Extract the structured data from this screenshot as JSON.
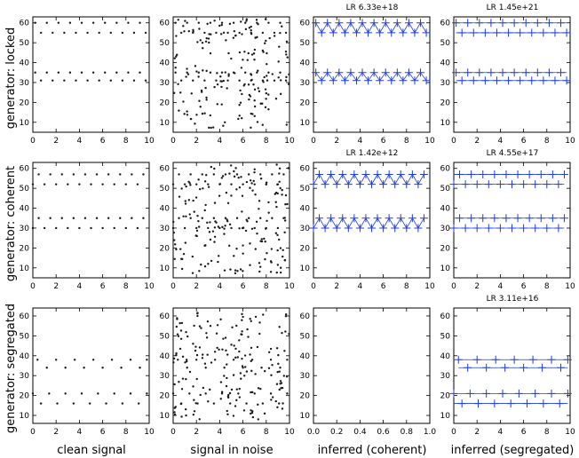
{
  "row_labels": [
    "generator: locked",
    "generator: coherent",
    "generator: segregated"
  ],
  "col_labels": [
    "clean signal",
    "signal in noise",
    "inferred (coherent)",
    "inferred (segregated)"
  ],
  "lr_labels": [
    [
      "",
      "",
      "LR 6.33e+18",
      "LR 1.45e+21"
    ],
    [
      "",
      "",
      "LR 1.42e+12",
      "LR 4.55e+17"
    ],
    [
      "",
      "",
      "",
      "LR 3.11e+16"
    ]
  ],
  "colors": {
    "dots": "#1a1a1a",
    "markers": "#1f3de0",
    "lines": "#1f3de0",
    "axes": "#000000"
  },
  "chart_data": {
    "type": "scatter",
    "layout": "3x4 grid",
    "x_ticks": [
      0,
      2,
      4,
      6,
      8,
      10
    ],
    "x_ticks_unit": [
      0.0,
      0.2,
      0.4,
      0.6,
      0.8,
      1.0
    ],
    "y_ticks": {
      "row0": [
        10,
        20,
        30,
        40,
        50,
        60
      ],
      "row1": [
        10,
        20,
        30,
        40,
        50,
        60
      ],
      "row2": [
        10,
        20,
        30,
        40,
        50,
        60
      ]
    },
    "xlim": [
      0,
      10
    ],
    "ylim": [
      [
        5,
        63
      ],
      [
        5,
        63
      ],
      [
        6,
        64
      ]
    ],
    "clean_levels": {
      "locked": {
        "high": [
          60,
          55
        ],
        "low": [
          35,
          31
        ]
      },
      "coherent": {
        "high": [
          57,
          52
        ],
        "low": [
          35,
          30
        ]
      },
      "segregated": {
        "high": [
          38,
          34
        ],
        "low": [
          21,
          16
        ]
      }
    },
    "clean_points": {
      "locked": {
        "x": [
          0.2,
          0.7,
          1.2,
          1.7,
          2.2,
          2.7,
          3.2,
          3.7,
          4.2,
          4.7,
          5.2,
          5.7,
          6.2,
          6.7,
          7.2,
          7.7,
          8.2,
          8.7,
          9.2,
          9.7
        ],
        "series": [
          {
            "name": "",
            "values": [
              60,
              55,
              60,
              55,
              60,
              55,
              60,
              55,
              60,
              55,
              60,
              55,
              60,
              55,
              60,
              55,
              60,
              55,
              60,
              55
            ]
          },
          {
            "name": "",
            "values": [
              35,
              31,
              35,
              31,
              35,
              31,
              35,
              31,
              35,
              31,
              35,
              31,
              35,
              31,
              35,
              31,
              35,
              31,
              35,
              31
            ]
          }
        ]
      },
      "coherent": {
        "x": [
          0.0,
          0.5,
          1.0,
          1.5,
          2.0,
          2.5,
          3.0,
          3.5,
          4.0,
          4.5,
          5.0,
          5.5,
          6.0,
          6.5,
          7.0,
          7.5,
          8.0,
          8.5,
          9.0,
          9.5
        ],
        "series": [
          {
            "name": "",
            "values": [
              52,
              57,
              52,
              57,
              52,
              57,
              52,
              57,
              52,
              57,
              52,
              57,
              52,
              57,
              52,
              57,
              52,
              57,
              52,
              57
            ]
          },
          {
            "name": "",
            "values": [
              30,
              35,
              30,
              35,
              30,
              35,
              30,
              35,
              30,
              35,
              30,
              35,
              30,
              35,
              30,
              35,
              30,
              35,
              30,
              35
            ]
          }
        ]
      },
      "segregated": {
        "high_x": [
          0.4,
          1.2,
          2.0,
          2.8,
          3.6,
          4.4,
          5.2,
          6.0,
          6.8,
          7.6,
          8.4,
          9.2,
          9.8
        ],
        "high_values": [
          38,
          34,
          38,
          34,
          38,
          34,
          38,
          34,
          38,
          34,
          38,
          34,
          38
        ],
        "low_x": [
          0.0,
          0.7,
          1.4,
          2.1,
          2.8,
          3.5,
          4.2,
          4.9,
          5.6,
          6.3,
          7.0,
          7.7,
          8.4,
          9.1,
          9.8
        ],
        "low_values": [
          21,
          16,
          21,
          16,
          21,
          16,
          21,
          16,
          21,
          16,
          21,
          16,
          21,
          16,
          21
        ]
      }
    },
    "noise_points_per_panel": 180,
    "inferred": {
      "locked_coherent": "markers connected by zigzag lines at clean levels",
      "locked_segregated": "markers on horizontal lines at clean levels",
      "coherent_coherent": "markers connected by zigzag lines at clean levels",
      "coherent_segregated": "markers on horizontal lines at clean levels",
      "segregated_coherent": "empty panel",
      "segregated_segregated": "markers on horizontal lines at clean levels"
    }
  }
}
